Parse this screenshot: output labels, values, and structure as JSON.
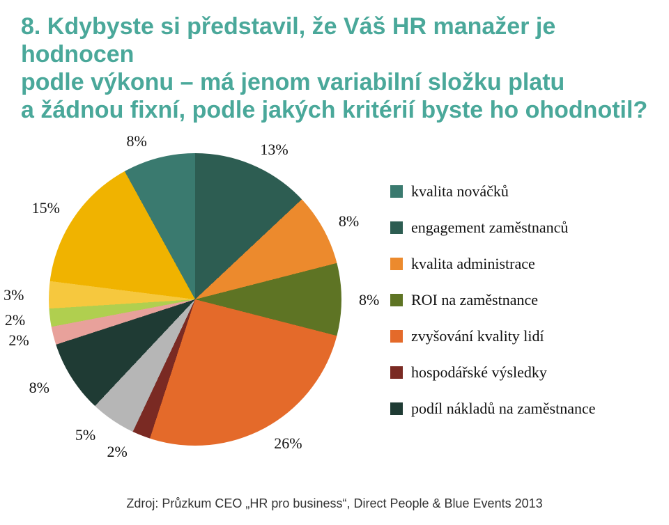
{
  "title": {
    "text": "8. Kdybyste si představil, že Váš HR manažer je hodnocen\npodle výkonu – má jenom variabilní složku platu\na žádnou fixní, podle jakých kritérií byste ho ohodnotil?",
    "color": "#4aa89a",
    "font_size": 34,
    "font_weight": 700
  },
  "chart": {
    "type": "pie",
    "start_angle_deg": -108,
    "slices": [
      {
        "name": "sl-2a",
        "value": 2,
        "color": "#e8a19b",
        "label": "2%"
      },
      {
        "name": "sl-2b",
        "value": 2,
        "color": "#b0cf4f",
        "label": "2%"
      },
      {
        "name": "sl-3",
        "value": 3,
        "color": "#f6c83e",
        "label": "3%"
      },
      {
        "name": "sl-15",
        "value": 15,
        "color": "#f0b300",
        "label": "15%"
      },
      {
        "name": "sl-8a",
        "value": 8,
        "color": "#3a7a6f",
        "label": "8%"
      },
      {
        "name": "sl-13",
        "value": 13,
        "color": "#2d5d52",
        "label": "13%"
      },
      {
        "name": "sl-8b",
        "value": 8,
        "color": "#ec8a2d",
        "label": "8%"
      },
      {
        "name": "sl-8c",
        "value": 8,
        "color": "#5e7424",
        "label": "8%"
      },
      {
        "name": "sl-26",
        "value": 26,
        "color": "#e46a2a",
        "label": "26%"
      },
      {
        "name": "sl-2c",
        "value": 2,
        "color": "#7a2a23",
        "label": "2%"
      },
      {
        "name": "sl-5",
        "value": 5,
        "color": "#b6b6b6",
        "label": "5%"
      },
      {
        "name": "sl-8d",
        "value": 8,
        "color": "#1f3b34",
        "label": "8%"
      }
    ],
    "label_font_size": 22,
    "label_color": "#111111",
    "background": "#ffffff"
  },
  "legend": {
    "font_size": 22,
    "items": [
      {
        "swatch": "#3a7a6f",
        "label": "kvalita nováčků"
      },
      {
        "swatch": "#2d5d52",
        "label": "engagement zaměstnanců"
      },
      {
        "swatch": "#ec8a2d",
        "label": "kvalita administrace"
      },
      {
        "swatch": "#5e7424",
        "label": "ROI na zaměstnance"
      },
      {
        "swatch": "#e46a2a",
        "label": "zvyšování kvality lidí"
      },
      {
        "swatch": "#7a2a23",
        "label": "hospodářské výsledky"
      },
      {
        "swatch": "#1f3b34",
        "label": "podíl nákladů na zaměstnance"
      }
    ]
  },
  "source": {
    "text": "Zdroj: Průzkum CEO „HR pro business“, Direct People & Blue Events 2013",
    "font_size": 18,
    "color": "#333333"
  }
}
